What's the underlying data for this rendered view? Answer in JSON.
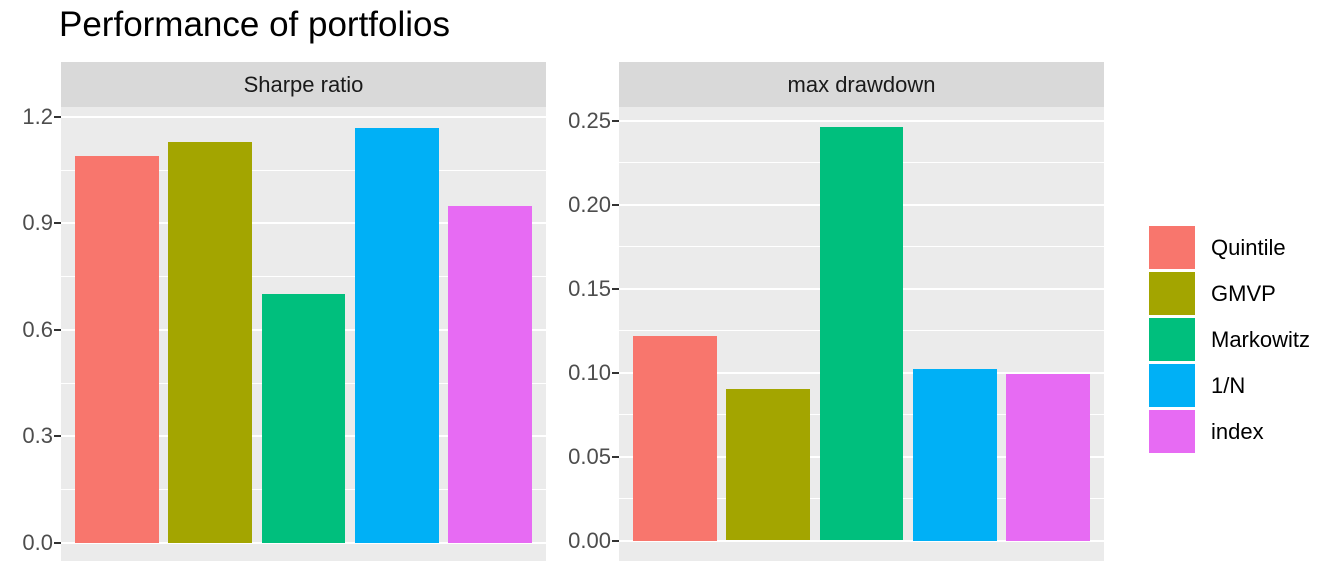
{
  "title": "Performance of portfolios",
  "colors": {
    "panel_background": "#EBEBEB",
    "strip_background": "#D9D9D9",
    "gridline": "#FFFFFF",
    "tick_mark": "#333333",
    "axis_text": "#4D4D4D",
    "strip_text": "#1A1A1A",
    "title_text": "#000000",
    "page_background": "#FFFFFF"
  },
  "legend": {
    "items": [
      {
        "label": "Quintile",
        "color": "#F8766D"
      },
      {
        "label": "GMVP",
        "color": "#A3A500"
      },
      {
        "label": "Markowitz",
        "color": "#00BF7D"
      },
      {
        "label": "1/N",
        "color": "#00B0F6"
      },
      {
        "label": "index",
        "color": "#E76BF3"
      }
    ]
  },
  "chart_data": {
    "type": "bar",
    "title": "Performance of portfolios",
    "categories": [
      "Quintile",
      "GMVP",
      "Markowitz",
      "1/N",
      "index"
    ],
    "colors": [
      "#F8766D",
      "#A3A500",
      "#00BF7D",
      "#00B0F6",
      "#E76BF3"
    ],
    "legend_position": "right",
    "grid": true,
    "bar_rel_width": 0.9,
    "x_axis_labels": "none",
    "facets": [
      {
        "label": "Sharpe ratio",
        "values": [
          1.09,
          1.13,
          0.7,
          1.17,
          0.95
        ],
        "yticks": [
          0.0,
          0.3,
          0.6,
          0.9,
          1.2
        ],
        "ytick_labels": [
          "0.0",
          "0.3",
          "0.6",
          "0.9",
          "1.2"
        ],
        "ylim": [
          -0.051,
          1.228
        ]
      },
      {
        "label": "max drawdown",
        "values": [
          0.122,
          0.09,
          0.246,
          0.102,
          0.099
        ],
        "yticks": [
          0.0,
          0.05,
          0.1,
          0.15,
          0.2,
          0.25
        ],
        "ytick_labels": [
          "0.00",
          "0.05",
          "0.10",
          "0.15",
          "0.20",
          "0.25"
        ],
        "ylim": [
          -0.0122,
          0.2581
        ]
      }
    ]
  }
}
